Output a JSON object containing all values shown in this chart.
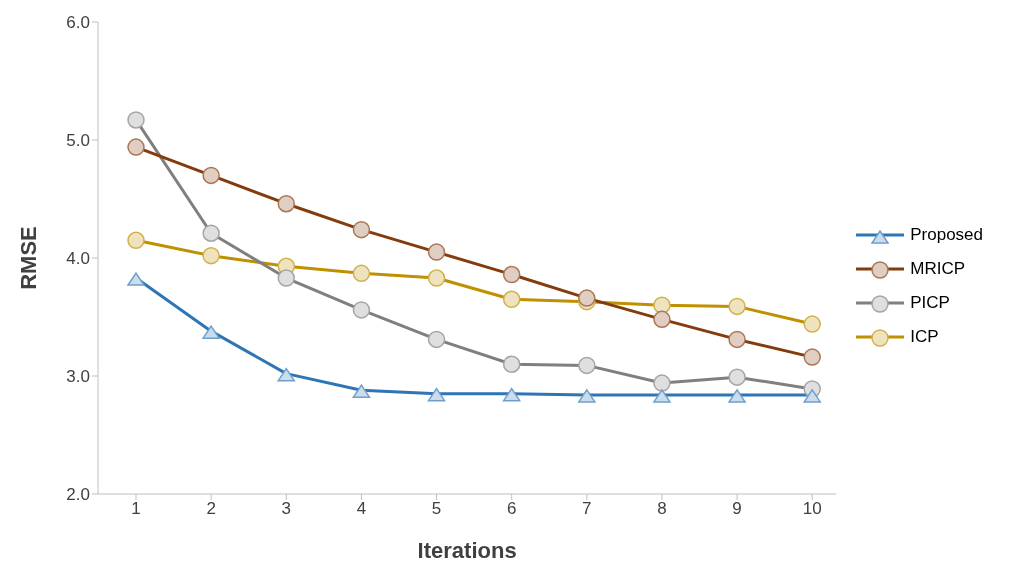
{
  "chart_data": {
    "type": "line",
    "xlabel": "Iterations",
    "ylabel": "RMSE",
    "categories": [
      "1",
      "2",
      "3",
      "4",
      "5",
      "6",
      "7",
      "8",
      "9",
      "10"
    ],
    "series": [
      {
        "name": "Proposed",
        "color": "#2e75b6",
        "marker": "triangle",
        "values": [
          3.83,
          3.38,
          3.02,
          2.88,
          2.85,
          2.85,
          2.84,
          2.84,
          2.84,
          2.84
        ]
      },
      {
        "name": "MRICP",
        "color": "#843c0c",
        "marker": "circle",
        "values": [
          4.94,
          4.7,
          4.46,
          4.24,
          4.05,
          3.86,
          3.66,
          3.48,
          3.31,
          3.16
        ]
      },
      {
        "name": "PICP",
        "color": "#7f7f7f",
        "marker": "circle",
        "values": [
          5.17,
          4.21,
          3.83,
          3.56,
          3.31,
          3.1,
          3.09,
          2.94,
          2.99,
          2.89
        ]
      },
      {
        "name": "ICP",
        "color": "#bf9000",
        "marker": "circle",
        "values": [
          4.15,
          4.02,
          3.93,
          3.87,
          3.83,
          3.65,
          3.63,
          3.6,
          3.59,
          3.44
        ]
      }
    ],
    "ylim": [
      2,
      6
    ],
    "yticks": [
      {
        "value": 2,
        "label": "2.0"
      },
      {
        "value": 3,
        "label": "3.0"
      },
      {
        "value": 4,
        "label": "4.0"
      },
      {
        "value": 5,
        "label": "5.0"
      },
      {
        "value": 6,
        "label": "6.0"
      }
    ],
    "grid": false,
    "legend": "right",
    "line_style": "solid"
  }
}
